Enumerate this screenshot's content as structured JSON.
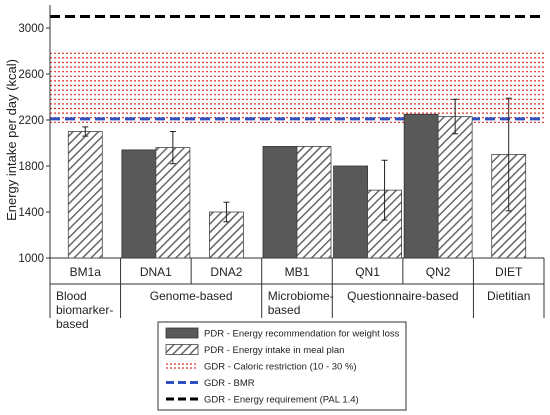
{
  "chart_data": {
    "type": "bar",
    "ylabel": "Energy intake per day (kcal)",
    "ylim": [
      1000,
      3200
    ],
    "yticks": [
      1000,
      1400,
      1800,
      2200,
      2600,
      3000
    ],
    "grid": false,
    "categories": [
      "BM1a",
      "DNA1",
      "DNA2",
      "MB1",
      "QN1",
      "QN2",
      "DIET"
    ],
    "groups": [
      {
        "label": "Blood biomarker-based",
        "lines": [
          "Blood",
          "biomarker-",
          "based"
        ],
        "from": 0,
        "to": 0
      },
      {
        "label": "Genome-based",
        "lines": [
          "Genome-based"
        ],
        "from": 1,
        "to": 2
      },
      {
        "label": "Microbiome-based",
        "lines": [
          "Microbiome-",
          "based"
        ],
        "from": 3,
        "to": 3
      },
      {
        "label": "Questionnaire-based",
        "lines": [
          "Questionnaire-based"
        ],
        "from": 4,
        "to": 5
      },
      {
        "label": "Dietitian",
        "lines": [
          "Dietitian"
        ],
        "from": 6,
        "to": 6
      }
    ],
    "series": [
      {
        "name": "PDR - Energy recommendation for weight loss",
        "style": "solid",
        "color": "#595959",
        "values": [
          null,
          1940,
          null,
          1970,
          1800,
          2250,
          null
        ]
      },
      {
        "name": "PDR - Energy intake in meal plan",
        "style": "hatched",
        "color": "#595959",
        "values": [
          2100,
          1960,
          1400,
          1970,
          1590,
          2230,
          1900
        ],
        "error": [
          40,
          140,
          85,
          null,
          260,
          150,
          490
        ]
      }
    ],
    "reference": {
      "caloric_restriction": {
        "name": "GDR - Caloric restriction (10 - 30 %)",
        "color": "#e0302a",
        "range": [
          2180,
          2780
        ],
        "step": 40
      },
      "bmr": {
        "name": "GDR - BMR",
        "color": "#2e4fbf",
        "value": 2210
      },
      "energy_requirement": {
        "name": "GDR - Energy requirement (PAL 1.4)",
        "color": "#000000",
        "value": 3100
      }
    }
  }
}
